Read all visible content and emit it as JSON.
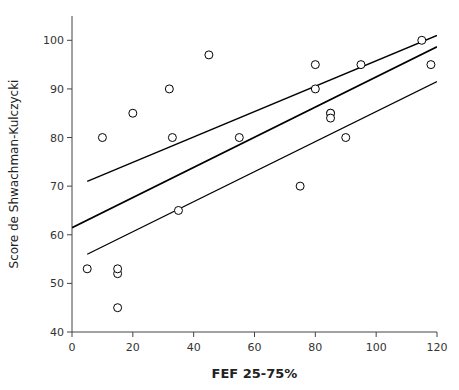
{
  "chart_data": {
    "type": "scatter",
    "xlabel": "FEF 25-75%",
    "ylabel": "Score de Shwachman-Kulczycki",
    "xlim": [
      0,
      120
    ],
    "ylim": [
      40,
      105
    ],
    "xticks": [
      0,
      20,
      40,
      60,
      80,
      100,
      120
    ],
    "yticks": [
      40,
      50,
      60,
      70,
      80,
      90,
      100
    ],
    "grid": false,
    "series": [
      {
        "type": "scatter",
        "marker": "circle",
        "color": "black",
        "x": [
          5,
          10,
          15,
          15,
          15,
          20,
          32,
          33,
          35,
          45,
          55,
          75,
          80,
          80,
          85,
          85,
          85,
          90,
          95,
          115,
          118
        ],
        "values": [
          53,
          80,
          45,
          52,
          53,
          85,
          90,
          80,
          65,
          97,
          80,
          70,
          95,
          90,
          85,
          85,
          84,
          80,
          95,
          100,
          95
        ]
      },
      {
        "type": "line",
        "line_style": "solid",
        "color": "black",
        "x": [
          0,
          120
        ],
        "values": [
          61.4546,
          98.6721
        ]
      },
      {
        "type": "line",
        "line_style": "solid",
        "color": "black",
        "x": [
          5,
          120
        ],
        "values": [
          71.0,
          101.0
        ]
      },
      {
        "type": "line",
        "line_style": "solid",
        "color": "black",
        "x": [
          5,
          120
        ],
        "values": [
          56.0,
          91.5
        ]
      }
    ]
  }
}
